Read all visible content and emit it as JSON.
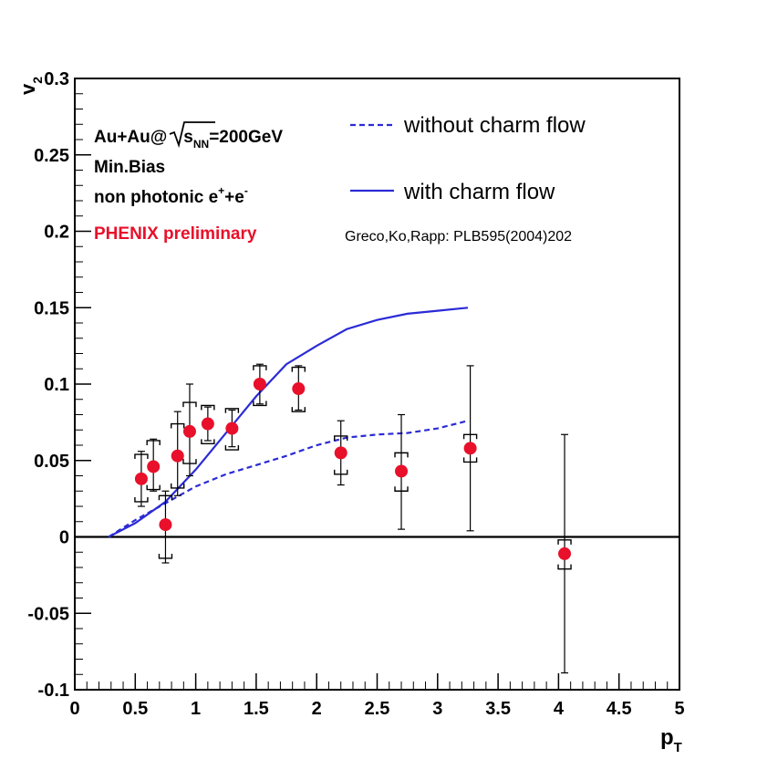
{
  "chart_data": {
    "type": "scatter",
    "xlabel": "p",
    "xlabel_sub": "T",
    "ylabel": "v",
    "ylabel_sub": "2",
    "xlim": [
      0,
      5
    ],
    "ylim": [
      -0.1,
      0.3
    ],
    "x_ticks": [
      0,
      0.5,
      1,
      1.5,
      2,
      2.5,
      3,
      3.5,
      4,
      4.5,
      5
    ],
    "x_tick_labels": [
      "0",
      "0.5",
      "1",
      "1.5",
      "2",
      "2.5",
      "3",
      "3.5",
      "4",
      "4.5",
      "5"
    ],
    "y_ticks": [
      -0.1,
      -0.05,
      0,
      0.05,
      0.1,
      0.15,
      0.2,
      0.25,
      0.3
    ],
    "y_tick_labels": [
      "-0.1",
      "-0.05",
      "0",
      "0.05",
      "0.1",
      "0.15",
      "0.2",
      "0.25",
      "0.3"
    ],
    "zero_line": true,
    "grid": false,
    "annotations": {
      "system_a": "Au+Au@",
      "system_s": "s",
      "system_sub": "NN",
      "system_b": "=200GeV",
      "centrality": "Min.Bias",
      "particle_a": "non photonic e",
      "particle_sup1": "+",
      "particle_b": "+e",
      "particle_sup2": "-",
      "experiment": "PHENIX preliminary",
      "reference": "Greco,Ko,Rapp:  PLB595(2004)202"
    },
    "legend_position": "top-right",
    "series": [
      {
        "name": "without charm flow",
        "kind": "line",
        "style": "dashed",
        "color": "#2b2bd6",
        "points": [
          [
            0.28,
            0.0
          ],
          [
            0.5,
            0.011
          ],
          [
            0.75,
            0.022
          ],
          [
            1.0,
            0.033
          ],
          [
            1.25,
            0.041
          ],
          [
            1.5,
            0.047
          ],
          [
            1.75,
            0.053
          ],
          [
            2.0,
            0.06
          ],
          [
            2.25,
            0.065
          ],
          [
            2.5,
            0.067
          ],
          [
            2.75,
            0.068
          ],
          [
            3.0,
            0.071
          ],
          [
            3.25,
            0.076
          ]
        ]
      },
      {
        "name": "with charm flow",
        "kind": "line",
        "style": "solid",
        "color": "#2b2bd6",
        "points": [
          [
            0.28,
            0.0
          ],
          [
            0.5,
            0.009
          ],
          [
            0.75,
            0.023
          ],
          [
            1.0,
            0.044
          ],
          [
            1.25,
            0.068
          ],
          [
            1.5,
            0.092
          ],
          [
            1.75,
            0.113
          ],
          [
            2.0,
            0.125
          ],
          [
            2.25,
            0.136
          ],
          [
            2.5,
            0.142
          ],
          [
            2.75,
            0.146
          ],
          [
            3.0,
            0.148
          ],
          [
            3.25,
            0.15
          ]
        ]
      },
      {
        "name": "PHENIX preliminary",
        "kind": "points",
        "color": "#e8102a",
        "points": [
          {
            "x": 0.55,
            "y": 0.038,
            "stat_lo": 0.02,
            "stat_hi": 0.056,
            "sys_lo": 0.023,
            "sys_hi": 0.054
          },
          {
            "x": 0.65,
            "y": 0.046,
            "stat_lo": 0.03,
            "stat_hi": 0.064,
            "sys_lo": 0.031,
            "sys_hi": 0.063
          },
          {
            "x": 0.75,
            "y": 0.008,
            "stat_lo": -0.017,
            "stat_hi": 0.03,
            "sys_lo": -0.014,
            "sys_hi": 0.027
          },
          {
            "x": 0.85,
            "y": 0.053,
            "stat_lo": 0.027,
            "stat_hi": 0.082,
            "sys_lo": 0.032,
            "sys_hi": 0.074
          },
          {
            "x": 0.95,
            "y": 0.069,
            "stat_lo": 0.04,
            "stat_hi": 0.1,
            "sys_lo": 0.048,
            "sys_hi": 0.088
          },
          {
            "x": 1.1,
            "y": 0.074,
            "stat_lo": 0.063,
            "stat_hi": 0.085,
            "sys_lo": 0.061,
            "sys_hi": 0.086
          },
          {
            "x": 1.3,
            "y": 0.071,
            "stat_lo": 0.059,
            "stat_hi": 0.083,
            "sys_lo": 0.057,
            "sys_hi": 0.084
          },
          {
            "x": 1.53,
            "y": 0.1,
            "stat_lo": 0.087,
            "stat_hi": 0.113,
            "sys_lo": 0.086,
            "sys_hi": 0.112
          },
          {
            "x": 1.85,
            "y": 0.097,
            "stat_lo": 0.083,
            "stat_hi": 0.112,
            "sys_lo": 0.082,
            "sys_hi": 0.111
          },
          {
            "x": 2.2,
            "y": 0.055,
            "stat_lo": 0.034,
            "stat_hi": 0.076,
            "sys_lo": 0.041,
            "sys_hi": 0.066
          },
          {
            "x": 2.7,
            "y": 0.043,
            "stat_lo": 0.005,
            "stat_hi": 0.08,
            "sys_lo": 0.03,
            "sys_hi": 0.055
          },
          {
            "x": 3.27,
            "y": 0.058,
            "stat_lo": 0.004,
            "stat_hi": 0.112,
            "sys_lo": 0.049,
            "sys_hi": 0.067
          },
          {
            "x": 4.05,
            "y": -0.011,
            "stat_lo": -0.089,
            "stat_hi": 0.067,
            "sys_lo": -0.021,
            "sys_hi": -0.002
          }
        ]
      }
    ]
  }
}
